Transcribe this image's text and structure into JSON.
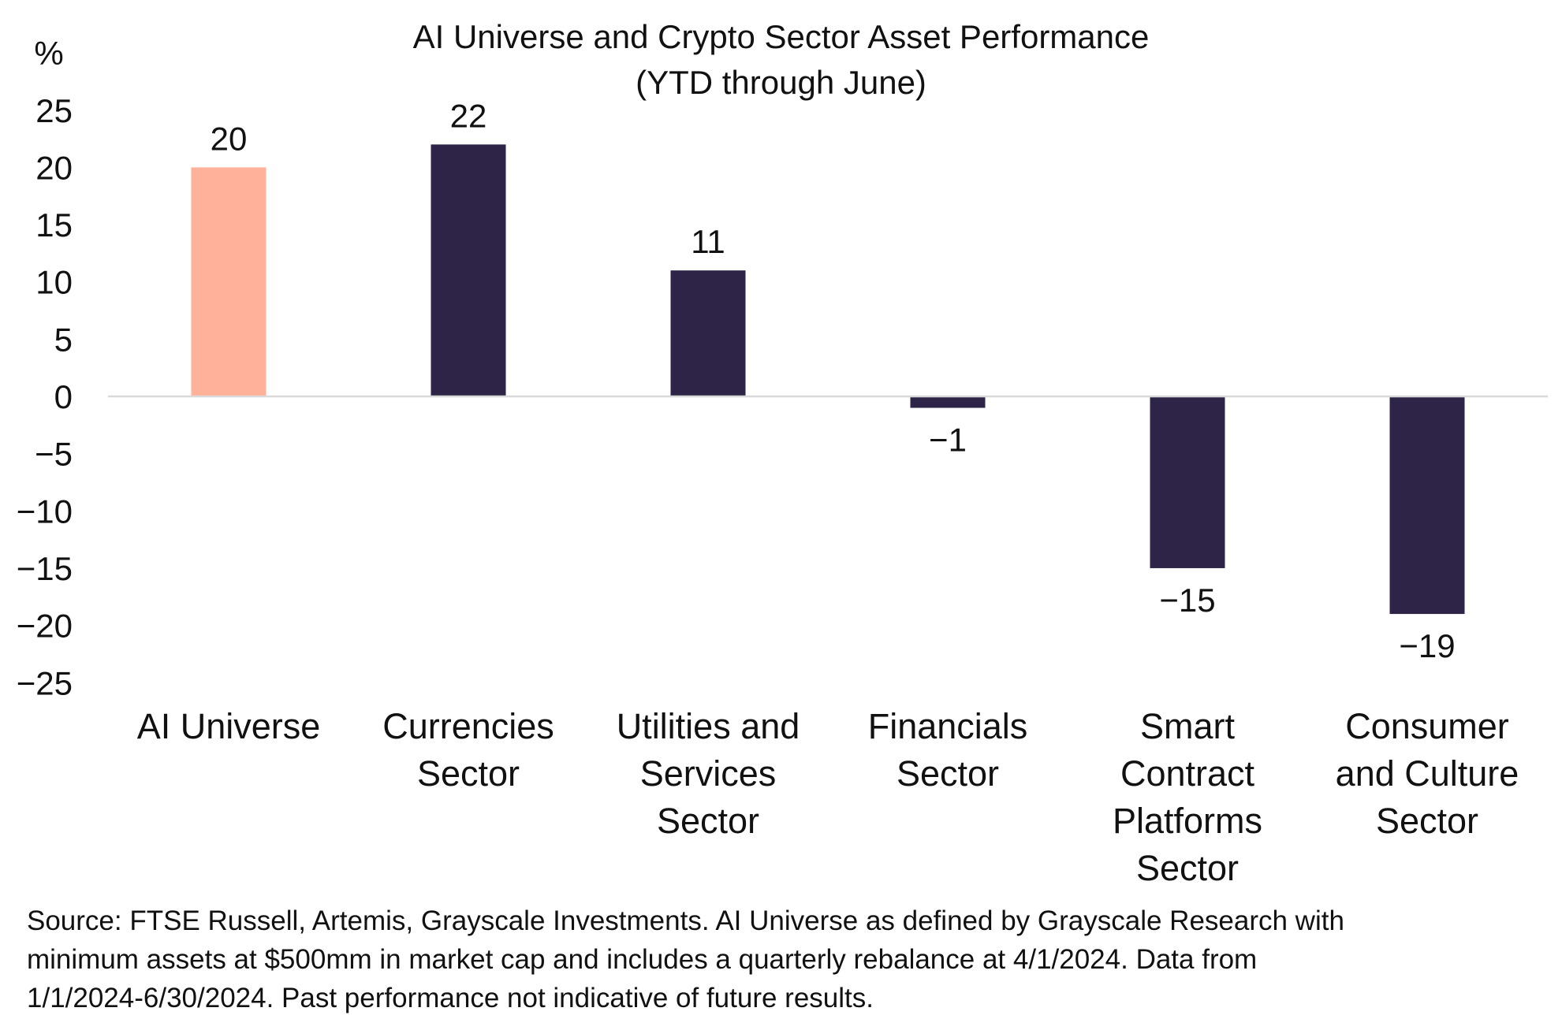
{
  "chart_data": {
    "type": "bar",
    "title": "AI Universe and Crypto Sector Asset Performance",
    "subtitle": "(YTD through June)",
    "ylabel": "%",
    "xlabel": "",
    "ylim": [
      -25,
      25
    ],
    "yticks": [
      "25",
      "20",
      "15",
      "10",
      "5",
      "0",
      "-5",
      "-10",
      "-15",
      "-20",
      "-25"
    ],
    "ytick_values": [
      25,
      20,
      15,
      10,
      5,
      0,
      -5,
      -10,
      -15,
      -20,
      -25
    ],
    "categories": [
      [
        "AI Universe"
      ],
      [
        "Currencies",
        "Sector"
      ],
      [
        "Utilities and",
        "Services",
        "Sector"
      ],
      [
        "Financials",
        "Sector"
      ],
      [
        "Smart",
        "Contract",
        "Platforms",
        "Sector"
      ],
      [
        "Consumer",
        "and Culture",
        "Sector"
      ]
    ],
    "values": [
      20,
      22,
      11,
      -1,
      -15,
      -19
    ],
    "data_labels": [
      "20",
      "22",
      "11",
      "−1",
      "−15",
      "−19"
    ],
    "colors": [
      "#FFB199",
      "#2D2448",
      "#2D2448",
      "#2D2448",
      "#2D2448",
      "#2D2448"
    ],
    "grid": false,
    "legend": "none"
  },
  "footer": {
    "lines": [
      "Source: FTSE Russell, Artemis, Grayscale Investments. AI Universe as defined by Grayscale Research with",
      "minimum assets at $500mm in market cap and includes a quarterly rebalance at 4/1/2024. Data from",
      "1/1/2024-6/30/2024. Past performance not indicative of future results."
    ]
  }
}
